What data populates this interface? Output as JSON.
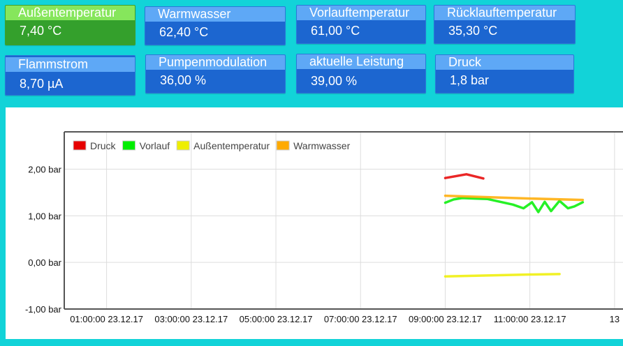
{
  "tiles": [
    {
      "label": "Außentemperatur",
      "value": "7,40 °C"
    },
    {
      "label": "Warmwasser",
      "value": "62,40 °C"
    },
    {
      "label": "Vorlauftemperatur",
      "value": "61,00 °C"
    },
    {
      "label": "Rücklauftemperatur",
      "value": "35,30 °C"
    },
    {
      "label": "Flammstrom",
      "value": "8,70 µA"
    },
    {
      "label": "Pumpenmodulation",
      "value": "36,00 %"
    },
    {
      "label": "aktuelle Leistung",
      "value": "39,00 %"
    },
    {
      "label": "Druck",
      "value": "1,8 bar"
    }
  ],
  "colors": {
    "background": "#12d3d8",
    "tile_blue": "#1c66d0",
    "tile_blue_header": "#5ea8f6",
    "tile_green": "#34a02c",
    "tile_green_header": "#86e65c"
  },
  "chart_data": {
    "type": "line",
    "y_ticks": [
      "2,00 bar",
      "1,00 bar",
      "0,00 bar",
      "-1,00 bar"
    ],
    "y_tick_values": [
      2,
      1,
      0,
      -1
    ],
    "ylim": [
      -1,
      2.8
    ],
    "x_ticks": [
      "01:00:00 23.12.17",
      "03:00:00 23.12.17",
      "05:00:00 23.12.17",
      "07:00:00 23.12.17",
      "09:00:00 23.12.17",
      "11:00:00 23.12.17",
      "13"
    ],
    "x_tick_hours": [
      1,
      3,
      5,
      7,
      9,
      11,
      13
    ],
    "xlim_hours": [
      0,
      13.2
    ],
    "grid": true,
    "legend_position": "top-left",
    "series": [
      {
        "name": "Druck",
        "color": "#e60000",
        "x_hours": [
          9.0,
          9.5,
          9.9
        ],
        "values": [
          1.81,
          1.89,
          1.8
        ]
      },
      {
        "name": "Vorlauf",
        "color": "#00ee00",
        "x_hours": [
          9.0,
          9.2,
          9.4,
          9.7,
          10.0,
          10.3,
          10.6,
          10.85,
          11.05,
          11.2,
          11.35,
          11.5,
          11.7,
          11.9,
          12.05,
          12.25
        ],
        "values": [
          1.28,
          1.35,
          1.38,
          1.37,
          1.36,
          1.3,
          1.24,
          1.16,
          1.29,
          1.08,
          1.3,
          1.1,
          1.32,
          1.16,
          1.2,
          1.29
        ]
      },
      {
        "name": "Außentemperatur",
        "color": "#eeee00",
        "x_hours": [
          9.0,
          10.0,
          11.0,
          11.7
        ],
        "values": [
          -0.3,
          -0.28,
          -0.26,
          -0.25
        ]
      },
      {
        "name": "Warmwasser",
        "color": "#ffaa00",
        "x_hours": [
          9.0,
          10.0,
          11.0,
          12.25
        ],
        "values": [
          1.43,
          1.4,
          1.37,
          1.34
        ]
      }
    ]
  }
}
